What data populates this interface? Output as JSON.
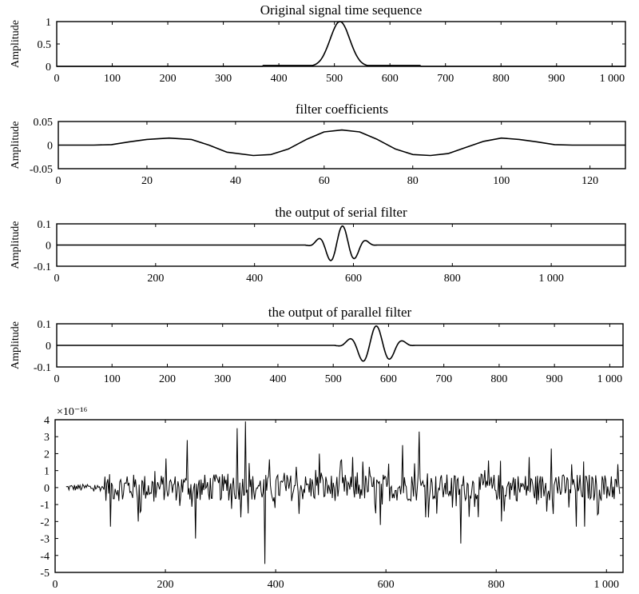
{
  "chart_data": [
    {
      "type": "line",
      "title": "Original signal time sequence",
      "ylabel": "Amplitude",
      "xlim": [
        0,
        1024
      ],
      "ylim": [
        0,
        1
      ],
      "xticks": [
        0,
        100,
        200,
        300,
        400,
        500,
        600,
        700,
        800,
        900,
        1000
      ],
      "xtick_labels": [
        "0",
        "100",
        "200",
        "300",
        "400",
        "500",
        "600",
        "700",
        "800",
        "900",
        "1 000"
      ],
      "yticks": [
        0,
        0.5,
        1
      ],
      "ytick_labels": [
        "0",
        "0.5",
        "1"
      ],
      "series": [
        {
          "x": [
            0,
            370,
            400,
            440,
            460,
            470,
            480,
            490,
            500,
            510,
            520,
            530,
            540,
            550,
            560,
            600,
            655,
            700,
            1024
          ],
          "y": [
            0,
            0,
            0.02,
            0.02,
            0.03,
            0.1,
            0.3,
            0.6,
            0.9,
            1.0,
            0.9,
            0.6,
            0.3,
            0.1,
            0.03,
            0.02,
            0.02,
            0,
            0
          ]
        }
      ]
    },
    {
      "type": "line",
      "title": "filter coefficients",
      "ylabel": "Amplitude",
      "xlim": [
        0,
        128
      ],
      "ylim": [
        -0.05,
        0.05
      ],
      "xticks": [
        0,
        20,
        40,
        60,
        80,
        100,
        120
      ],
      "xtick_labels": [
        "0",
        "20",
        "40",
        "60",
        "80",
        "100",
        "120"
      ],
      "yticks": [
        -0.05,
        0,
        0.05
      ],
      "ytick_labels": [
        "-0.05",
        "0",
        "0.05"
      ],
      "series": [
        {
          "x": [
            0,
            8,
            12,
            16,
            20,
            25,
            30,
            34,
            38,
            44,
            48,
            52,
            56,
            60,
            64,
            68,
            72,
            76,
            80,
            84,
            88,
            92,
            96,
            100,
            104,
            108,
            112,
            116,
            120,
            128
          ],
          "y": [
            0,
            0,
            0.001,
            0.007,
            0.012,
            0.015,
            0.012,
            0.0,
            -0.015,
            -0.022,
            -0.02,
            -0.008,
            0.012,
            0.028,
            0.032,
            0.028,
            0.012,
            -0.008,
            -0.02,
            -0.022,
            -0.018,
            -0.005,
            0.008,
            0.015,
            0.012,
            0.007,
            0.001,
            0,
            0,
            0
          ]
        }
      ]
    },
    {
      "type": "line",
      "title": "the output of serial filter",
      "ylabel": "Amplitude",
      "xlim": [
        0,
        1150
      ],
      "ylim": [
        -0.1,
        0.1
      ],
      "xticks": [
        0,
        200,
        400,
        600,
        800,
        1000
      ],
      "xtick_labels": [
        "0",
        "200",
        "400",
        "600",
        "800",
        "1 000"
      ],
      "yticks": [
        -0.1,
        0,
        0.1
      ],
      "ytick_labels": [
        "-0.1",
        "0",
        "0.1"
      ],
      "series": [
        {
          "x": [
            0,
            500,
            510,
            525,
            540,
            552,
            565,
            578,
            590,
            600,
            612,
            625,
            640,
            650,
            1150
          ],
          "y": [
            0,
            0,
            0.01,
            0.04,
            0.02,
            -0.06,
            -0.02,
            0.085,
            0.01,
            -0.09,
            0.005,
            0.035,
            0.01,
            0,
            0
          ]
        }
      ]
    },
    {
      "type": "line",
      "title": "the output of parallel filter",
      "ylabel": "Amplitude",
      "xlim": [
        0,
        1024
      ],
      "ylim": [
        -0.1,
        0.1
      ],
      "xticks": [
        0,
        100,
        200,
        300,
        400,
        500,
        600,
        700,
        800,
        900,
        1000
      ],
      "xtick_labels": [
        "0",
        "100",
        "200",
        "300",
        "400",
        "500",
        "600",
        "700",
        "800",
        "900",
        "1 000"
      ],
      "yticks": [
        -0.1,
        0,
        0.1
      ],
      "ytick_labels": [
        "-0.1",
        "0",
        "0.1"
      ],
      "series": [
        {
          "x": [
            0,
            500,
            510,
            525,
            540,
            552,
            565,
            578,
            590,
            600,
            612,
            625,
            640,
            650,
            1024
          ],
          "y": [
            0,
            0,
            0.01,
            0.04,
            0.02,
            -0.06,
            -0.02,
            0.085,
            0.01,
            -0.09,
            0.005,
            0.035,
            0.01,
            0,
            0
          ]
        }
      ]
    },
    {
      "type": "line",
      "title": "",
      "ylabel": "",
      "scale_label": "×10⁻¹⁶",
      "xlim": [
        0,
        1030
      ],
      "ylim": [
        -5,
        4
      ],
      "xticks": [
        0,
        200,
        400,
        600,
        800,
        1000
      ],
      "xtick_labels": [
        "0",
        "200",
        "400",
        "600",
        "800",
        "1 000"
      ],
      "yticks": [
        -5,
        -4,
        -3,
        -2,
        -1,
        0,
        1,
        2,
        3,
        4
      ],
      "ytick_labels": [
        "-5",
        "-4",
        "-3",
        "-2",
        "-1",
        "0",
        "1",
        "2",
        "3",
        "4"
      ],
      "series": [
        {
          "x_start": 20,
          "x_end": 1024,
          "n_points": 600,
          "noise": "dense random noise",
          "peaks": [
            {
              "x": 345,
              "y": 3.9
            },
            {
              "x": 380,
              "y": -4.5
            },
            {
              "x": 330,
              "y": 3.5
            },
            {
              "x": 735,
              "y": -3.3
            },
            {
              "x": 255,
              "y": -3.0
            },
            {
              "x": 660,
              "y": 3.3
            },
            {
              "x": 240,
              "y": 2.8
            },
            {
              "x": 630,
              "y": 2.5
            },
            {
              "x": 945,
              "y": -2.3
            },
            {
              "x": 590,
              "y": -2.2
            },
            {
              "x": 100,
              "y": -2.3
            },
            {
              "x": 900,
              "y": 2.3
            },
            {
              "x": 960,
              "y": -2.3
            },
            {
              "x": 150,
              "y": -2.0
            },
            {
              "x": 480,
              "y": 2.0
            },
            {
              "x": 810,
              "y": -2.0
            },
            {
              "x": 540,
              "y": 1.8
            },
            {
              "x": 860,
              "y": 1.8
            }
          ]
        }
      ]
    }
  ]
}
